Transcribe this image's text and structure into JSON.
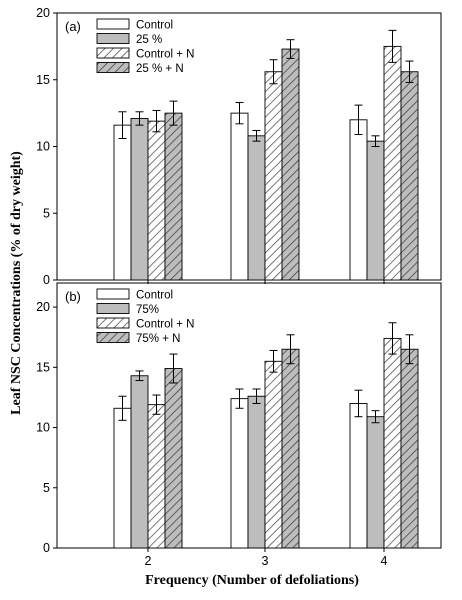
{
  "figure": {
    "xlabel": "Frequency (Number of defoliations)",
    "ylabel": "Leaf NSC Concentrations (% of dry weight)"
  },
  "colors": {
    "control": "#ffffff",
    "defol": "#bdbdbd",
    "controlN": "#ffffff",
    "defolN": "#bdbdbd",
    "hatch": "#555555"
  },
  "chart_data": [
    {
      "type": "bar",
      "panel_label": "(a)",
      "categories": [
        "2",
        "3",
        "4"
      ],
      "ylim": [
        0,
        20
      ],
      "yticks": [
        "0",
        "5",
        "10",
        "15",
        "20"
      ],
      "legend_position": "top-left",
      "series": [
        {
          "name": "Control",
          "style": "open",
          "values": [
            11.6,
            12.5,
            12.0
          ],
          "errors": [
            1.0,
            0.8,
            1.1
          ]
        },
        {
          "name": "25 %",
          "style": "gray",
          "values": [
            12.1,
            10.8,
            10.4
          ],
          "errors": [
            0.5,
            0.4,
            0.4
          ]
        },
        {
          "name": "Control + N",
          "style": "hatch",
          "values": [
            11.9,
            15.6,
            17.5
          ],
          "errors": [
            0.8,
            0.9,
            1.2
          ]
        },
        {
          "name": "25 % + N",
          "style": "hatch-gray",
          "values": [
            12.5,
            17.3,
            15.6
          ],
          "errors": [
            0.9,
            0.7,
            0.8
          ]
        }
      ]
    },
    {
      "type": "bar",
      "panel_label": "(b)",
      "categories": [
        "2",
        "3",
        "4"
      ],
      "ylim": [
        0,
        22
      ],
      "yticks": [
        "0",
        "5",
        "10",
        "15",
        "20"
      ],
      "legend_position": "top-left",
      "series": [
        {
          "name": "Control",
          "style": "open",
          "values": [
            11.6,
            12.4,
            12.0
          ],
          "errors": [
            1.0,
            0.8,
            1.1
          ]
        },
        {
          "name": "75%",
          "style": "gray",
          "values": [
            14.3,
            12.6,
            10.9
          ],
          "errors": [
            0.4,
            0.6,
            0.5
          ]
        },
        {
          "name": "Control + N",
          "style": "hatch",
          "values": [
            11.9,
            15.5,
            17.4
          ],
          "errors": [
            0.8,
            0.9,
            1.3
          ]
        },
        {
          "name": "75% + N",
          "style": "hatch-gray",
          "values": [
            14.9,
            16.5,
            16.5
          ],
          "errors": [
            1.2,
            1.2,
            1.2
          ]
        }
      ]
    }
  ]
}
